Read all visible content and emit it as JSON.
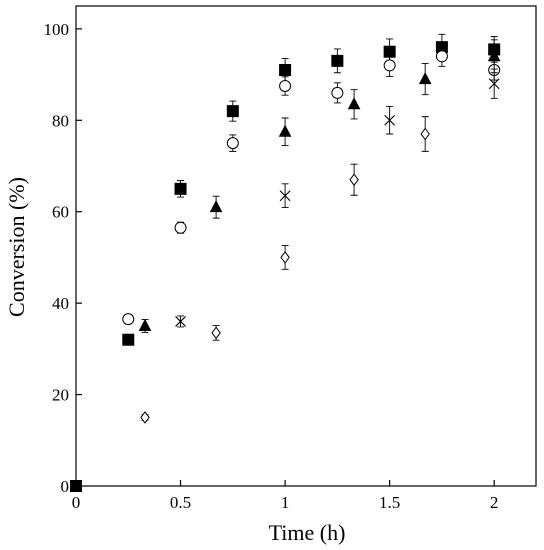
{
  "chart_data": {
    "type": "scatter",
    "title": "",
    "xlabel": "Time (h)",
    "ylabel": "Conversion (%)",
    "xlim": [
      0,
      2.2
    ],
    "ylim": [
      0,
      105
    ],
    "xticks": [
      0,
      0.5,
      1,
      1.5,
      2
    ],
    "xtick_labels": [
      "0",
      "0.5",
      "1",
      "1.5",
      "2"
    ],
    "yticks": [
      0,
      20,
      40,
      60,
      80,
      100
    ],
    "ytick_labels": [
      "0",
      "20",
      "40",
      "60",
      "80",
      "100"
    ],
    "grid": false,
    "legend": "none",
    "series": [
      {
        "marker": "filled-square",
        "color": "#000000",
        "points": [
          {
            "x": 0,
            "y": 0,
            "err": 0
          },
          {
            "x": 0.25,
            "y": 32,
            "err": 0
          },
          {
            "x": 0.5,
            "y": 65,
            "err": 1.8
          },
          {
            "x": 0.75,
            "y": 82,
            "err": 2.2
          },
          {
            "x": 1.0,
            "y": 91,
            "err": 2.5
          },
          {
            "x": 1.25,
            "y": 93,
            "err": 2.6
          },
          {
            "x": 1.5,
            "y": 95,
            "err": 2.8
          },
          {
            "x": 1.75,
            "y": 96,
            "err": 2.8
          },
          {
            "x": 2.0,
            "y": 95.5,
            "err": 2.8
          }
        ]
      },
      {
        "marker": "open-circle",
        "color": "#000000",
        "points": [
          {
            "x": 0.25,
            "y": 36.5,
            "err": 0.8
          },
          {
            "x": 0.5,
            "y": 56.5,
            "err": 1.2
          },
          {
            "x": 0.75,
            "y": 75,
            "err": 1.8
          },
          {
            "x": 1.0,
            "y": 87.5,
            "err": 2.0
          },
          {
            "x": 1.25,
            "y": 86,
            "err": 2.2
          },
          {
            "x": 1.5,
            "y": 92,
            "err": 2.4
          },
          {
            "x": 1.75,
            "y": 94,
            "err": 2.2
          },
          {
            "x": 2.0,
            "y": 91,
            "err": 2.2
          }
        ]
      },
      {
        "marker": "filled-triangle",
        "color": "#000000",
        "points": [
          {
            "x": 0.33,
            "y": 35,
            "err": 1.4
          },
          {
            "x": 0.67,
            "y": 61,
            "err": 2.4
          },
          {
            "x": 1.0,
            "y": 77.5,
            "err": 3.0
          },
          {
            "x": 1.33,
            "y": 83.5,
            "err": 3.2
          },
          {
            "x": 1.67,
            "y": 89,
            "err": 3.4
          },
          {
            "x": 2.0,
            "y": 94,
            "err": 3.6
          }
        ]
      },
      {
        "marker": "cross",
        "color": "#000000",
        "points": [
          {
            "x": 0.5,
            "y": 36,
            "err": 1.2
          },
          {
            "x": 1.0,
            "y": 63.5,
            "err": 2.6
          },
          {
            "x": 1.5,
            "y": 80,
            "err": 3.0
          },
          {
            "x": 2.0,
            "y": 88,
            "err": 3.2
          }
        ]
      },
      {
        "marker": "open-diamond",
        "color": "#000000",
        "points": [
          {
            "x": 0.33,
            "y": 15,
            "err": 0.6
          },
          {
            "x": 0.67,
            "y": 33.5,
            "err": 1.6
          },
          {
            "x": 1.0,
            "y": 50,
            "err": 2.6
          },
          {
            "x": 1.33,
            "y": 67,
            "err": 3.4
          },
          {
            "x": 1.67,
            "y": 77,
            "err": 3.8
          }
        ]
      }
    ]
  }
}
